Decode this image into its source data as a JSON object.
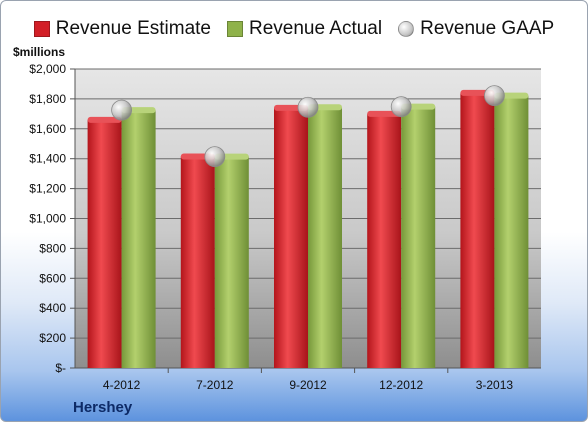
{
  "colors": {
    "estimate": "#d21f27",
    "actual": "#8fb24a",
    "gaap": "#c8c8c8",
    "plot_bg_top": "#e6e6e6",
    "plot_bg_bottom": "#8e8e8e"
  },
  "labels": {
    "units": "$millions",
    "company": "Hershey"
  },
  "chart_data": {
    "type": "bar",
    "categories": [
      "4-2012",
      "7-2012",
      "9-2012",
      "12-2012",
      "3-2013"
    ],
    "series": [
      {
        "name": "Revenue Estimate",
        "type": "bar",
        "values": [
          1660,
          1415,
          1740,
          1700,
          1840
        ]
      },
      {
        "name": "Revenue Actual",
        "type": "bar",
        "values": [
          1725,
          1414,
          1744,
          1748,
          1822
        ]
      },
      {
        "name": "Revenue GAAP",
        "type": "scatter",
        "values": [
          1725,
          1414,
          1744,
          1748,
          1822
        ]
      }
    ],
    "ylabel": "$millions",
    "ylim": [
      0,
      2000
    ],
    "yticks": [
      0,
      200,
      400,
      600,
      800,
      1000,
      1200,
      1400,
      1600,
      1800,
      2000
    ],
    "ytick_labels": [
      "$-",
      "$200",
      "$400",
      "$600",
      "$800",
      "$1,000",
      "$1,200",
      "$1,400",
      "$1,600",
      "$1,800",
      "$2,000"
    ],
    "grid": true,
    "legend": "top"
  }
}
